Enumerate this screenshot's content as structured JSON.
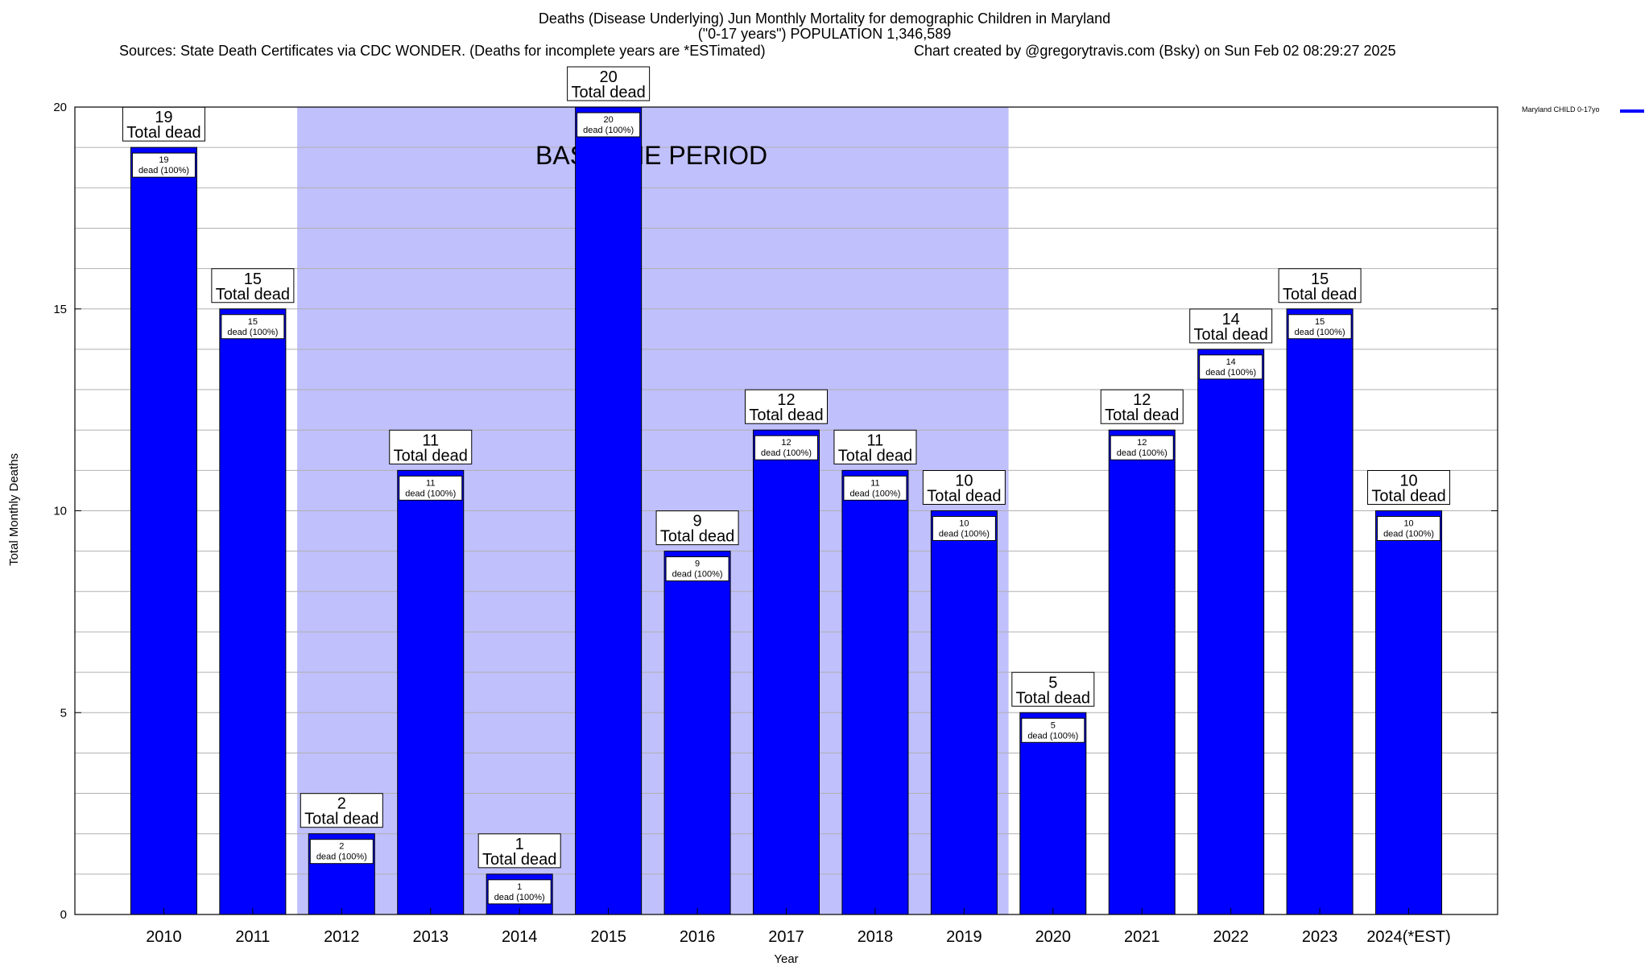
{
  "title": {
    "line1": "Deaths (Disease Underlying) Jun Monthly Mortality for demographic Children in Maryland",
    "line2": "(\"0-17 years\") POPULATION 1,346,589",
    "sources": "Sources: State Death Certificates via CDC WONDER. (Deaths for incomplete years are *ESTimated)",
    "credit": "Chart created by @gregorytravis.com (Bsky) on Sun Feb 02 08:29:27 2025"
  },
  "legend": {
    "label": "Maryland CHILD 0-17yo"
  },
  "colors": {
    "bar": "#0000ff",
    "baseline_shade": "#c0c0fc",
    "grid": "#b0b0b0"
  },
  "chart_data": {
    "type": "bar",
    "categories": [
      "2010",
      "2011",
      "2012",
      "2013",
      "2014",
      "2015",
      "2016",
      "2017",
      "2018",
      "2019",
      "2020",
      "2021",
      "2022",
      "2023",
      "2024(*EST)"
    ],
    "series": [
      {
        "name": "Maryland CHILD 0-17yo",
        "values": [
          19,
          15,
          2,
          11,
          1,
          20,
          9,
          12,
          11,
          10,
          5,
          12,
          14,
          15,
          10
        ]
      }
    ],
    "total_labels": [
      "19",
      "15",
      "2",
      "11",
      "1",
      "20",
      "9",
      "12",
      "11",
      "10",
      "5",
      "12",
      "14",
      "15",
      "10"
    ],
    "total_label_suffix": "Total dead",
    "inner_labels": [
      "19",
      "15",
      "2",
      "11",
      "1",
      "20",
      "9",
      "12",
      "11",
      "10",
      "5",
      "12",
      "14",
      "15",
      "10"
    ],
    "inner_label_suffix": "dead (100%)",
    "baseline_period": {
      "label": "BASELINE PERIOD",
      "from": "2012",
      "to": "2019"
    },
    "xlabel": "Year",
    "ylabel": "Total Monthly Deaths",
    "ylim": [
      0,
      20
    ],
    "yticks": [
      0,
      5,
      10,
      15,
      20
    ],
    "grid": true,
    "legend_position": "top-right"
  }
}
